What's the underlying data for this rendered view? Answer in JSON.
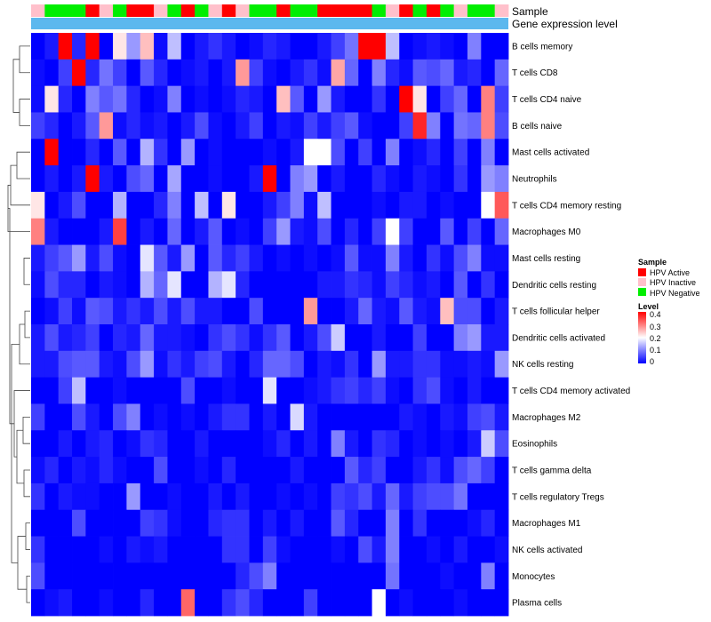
{
  "chart_data": {
    "type": "heatmap",
    "annotation_labels": [
      "Sample",
      "Gene expression level"
    ],
    "sample_categories": [
      "HPV Active",
      "HPV Inactive",
      "HPV Negative"
    ],
    "sample_colors": {
      "HPV Active": "#ff0000",
      "HPV Inactive": "#ffc0cb",
      "HPV Negative": "#00ee00"
    },
    "expression_bar_color": "#5cb8ee",
    "sample_groups": [
      "HPV Inactive",
      "HPV Negative",
      "HPV Negative",
      "HPV Negative",
      "HPV Active",
      "HPV Inactive",
      "HPV Negative",
      "HPV Active",
      "HPV Active",
      "HPV Inactive",
      "HPV Negative",
      "HPV Active",
      "HPV Negative",
      "HPV Inactive",
      "HPV Active",
      "HPV Inactive",
      "HPV Negative",
      "HPV Negative",
      "HPV Active",
      "HPV Negative",
      "HPV Negative",
      "HPV Active",
      "HPV Active",
      "HPV Active",
      "HPV Active",
      "HPV Negative",
      "HPV Inactive",
      "HPV Active",
      "HPV Negative",
      "HPV Active",
      "HPV Negative",
      "HPV Inactive",
      "HPV Negative",
      "HPV Negative",
      "HPV Inactive"
    ],
    "rows": [
      "B cells memory",
      "T cells CD8",
      "T cells CD4 naive",
      "B cells naive",
      "Mast cells activated",
      "Neutrophils",
      "T cells CD4 memory resting",
      "Macrophages M0",
      "Mast cells resting",
      "Dendritic cells resting",
      "T cells follicular helper",
      "Dendritic cells activated",
      "NK cells resting",
      "T cells CD4 memory activated",
      "Macrophages M2",
      "Eosinophils",
      "T cells gamma delta",
      "T cells regulatory  Tregs",
      "Macrophages M1",
      "NK cells activated",
      "Monocytes",
      "Plasma cells"
    ],
    "values": [
      [
        0.0,
        0.02,
        0.4,
        0.03,
        0.4,
        0.0,
        0.22,
        0.12,
        0.25,
        0.01,
        0.15,
        0.0,
        0.02,
        0.04,
        0.02,
        0.0,
        0.01,
        0.03,
        0.02,
        0.0,
        0.0,
        0.02,
        0.05,
        0.09,
        0.4,
        0.4,
        0.15,
        0.0,
        0.01,
        0.02,
        0.01,
        0.0,
        0.1,
        0.0,
        0.0
      ],
      [
        0.01,
        0.0,
        0.05,
        0.4,
        0.03,
        0.09,
        0.05,
        0.0,
        0.07,
        0.03,
        0.0,
        0.01,
        0.02,
        0.0,
        0.02,
        0.28,
        0.05,
        0.01,
        0.0,
        0.02,
        0.04,
        0.01,
        0.27,
        0.08,
        0.0,
        0.1,
        0.03,
        0.01,
        0.07,
        0.06,
        0.08,
        0.02,
        0.03,
        0.0,
        0.08
      ],
      [
        0.01,
        0.22,
        0.03,
        0.0,
        0.1,
        0.07,
        0.09,
        0.03,
        0.0,
        0.01,
        0.1,
        0.0,
        0.01,
        0.0,
        0.01,
        0.03,
        0.02,
        0.0,
        0.25,
        0.07,
        0.0,
        0.12,
        0.02,
        0.0,
        0.0,
        0.04,
        0.0,
        0.4,
        0.22,
        0.0,
        0.05,
        0.08,
        0.0,
        0.3,
        0.05
      ],
      [
        0.05,
        0.03,
        0.0,
        0.02,
        0.07,
        0.28,
        0.01,
        0.03,
        0.01,
        0.02,
        0.0,
        0.02,
        0.06,
        0.01,
        0.0,
        0.02,
        0.05,
        0.0,
        0.02,
        0.01,
        0.05,
        0.02,
        0.05,
        0.07,
        0.01,
        0.0,
        0.0,
        0.05,
        0.37,
        0.1,
        0.0,
        0.09,
        0.08,
        0.3,
        0.06
      ],
      [
        0.0,
        0.4,
        0.0,
        0.0,
        0.03,
        0.0,
        0.07,
        0.0,
        0.14,
        0.04,
        0.0,
        0.12,
        0.0,
        0.01,
        0.0,
        0.0,
        0.0,
        0.01,
        0.0,
        0.02,
        0.2,
        0.2,
        0.06,
        0.0,
        0.05,
        0.0,
        0.1,
        0.0,
        0.01,
        0.03,
        0.0,
        0.05,
        0.0,
        0.1,
        0.0
      ],
      [
        0.0,
        0.02,
        0.0,
        0.02,
        0.4,
        0.02,
        0.0,
        0.06,
        0.08,
        0.0,
        0.13,
        0.0,
        0.0,
        0.01,
        0.0,
        0.0,
        0.02,
        0.4,
        0.0,
        0.1,
        0.12,
        0.0,
        0.02,
        0.0,
        0.0,
        0.03,
        0.01,
        0.0,
        0.02,
        0.01,
        0.0,
        0.04,
        0.0,
        0.12,
        0.1
      ],
      [
        0.22,
        0.0,
        0.02,
        0.06,
        0.0,
        0.0,
        0.14,
        0.0,
        0.0,
        0.03,
        0.1,
        0.0,
        0.15,
        0.0,
        0.22,
        0.0,
        0.0,
        0.02,
        0.05,
        0.1,
        0.01,
        0.15,
        0.0,
        0.0,
        0.0,
        0.01,
        0.0,
        0.02,
        0.02,
        0.0,
        0.01,
        0.0,
        0.0,
        0.2,
        0.33
      ],
      [
        0.3,
        0.02,
        0.0,
        0.0,
        0.0,
        0.02,
        0.35,
        0.0,
        0.02,
        0.0,
        0.08,
        0.0,
        0.02,
        0.07,
        0.0,
        0.01,
        0.0,
        0.05,
        0.12,
        0.02,
        0.01,
        0.06,
        0.0,
        0.03,
        0.0,
        0.05,
        0.2,
        0.05,
        0.0,
        0.0,
        0.07,
        0.0,
        0.05,
        0.0,
        0.08
      ],
      [
        0.02,
        0.05,
        0.07,
        0.12,
        0.02,
        0.06,
        0.01,
        0.0,
        0.18,
        0.07,
        0.02,
        0.12,
        0.0,
        0.07,
        0.03,
        0.05,
        0.02,
        0.0,
        0.01,
        0.0,
        0.01,
        0.0,
        0.01,
        0.07,
        0.01,
        0.01,
        0.1,
        0.02,
        0.0,
        0.04,
        0.01,
        0.06,
        0.1,
        0.01,
        0.01
      ],
      [
        0.01,
        0.06,
        0.03,
        0.03,
        0.0,
        0.02,
        0.01,
        0.0,
        0.14,
        0.08,
        0.18,
        0.0,
        0.0,
        0.14,
        0.18,
        0.03,
        0.0,
        0.0,
        0.0,
        0.0,
        0.0,
        0.02,
        0.02,
        0.04,
        0.03,
        0.01,
        0.05,
        0.03,
        0.01,
        0.02,
        0.0,
        0.07,
        0.0,
        0.04,
        0.0
      ],
      [
        0.0,
        0.01,
        0.05,
        0.01,
        0.07,
        0.06,
        0.02,
        0.04,
        0.02,
        0.06,
        0.02,
        0.06,
        0.02,
        0.02,
        0.0,
        0.0,
        0.06,
        0.0,
        0.0,
        0.0,
        0.28,
        0.0,
        0.0,
        0.02,
        0.08,
        0.02,
        0.01,
        0.07,
        0.02,
        0.01,
        0.25,
        0.06,
        0.06,
        0.0,
        0.02
      ],
      [
        0.02,
        0.06,
        0.02,
        0.03,
        0.05,
        0.0,
        0.03,
        0.02,
        0.08,
        0.02,
        0.02,
        0.01,
        0.0,
        0.04,
        0.06,
        0.04,
        0.01,
        0.04,
        0.07,
        0.0,
        0.02,
        0.06,
        0.16,
        0.0,
        0.0,
        0.02,
        0.0,
        0.0,
        0.05,
        0.0,
        0.0,
        0.1,
        0.12,
        0.02,
        0.02
      ],
      [
        0.02,
        0.02,
        0.06,
        0.07,
        0.07,
        0.02,
        0.01,
        0.06,
        0.12,
        0.01,
        0.04,
        0.02,
        0.05,
        0.06,
        0.02,
        0.0,
        0.03,
        0.08,
        0.08,
        0.06,
        0.0,
        0.02,
        0.01,
        0.04,
        0.0,
        0.12,
        0.02,
        0.02,
        0.04,
        0.04,
        0.01,
        0.01,
        0.02,
        0.01,
        0.12
      ],
      [
        0.0,
        0.0,
        0.05,
        0.15,
        0.0,
        0.0,
        0.01,
        0.0,
        0.0,
        0.0,
        0.0,
        0.06,
        0.0,
        0.0,
        0.01,
        0.0,
        0.0,
        0.18,
        0.0,
        0.0,
        0.01,
        0.02,
        0.04,
        0.05,
        0.03,
        0.05,
        0.01,
        0.0,
        0.04,
        0.06,
        0.01,
        0.0,
        0.02,
        0.0,
        0.0
      ],
      [
        0.05,
        0.0,
        0.0,
        0.06,
        0.02,
        0.0,
        0.06,
        0.1,
        0.0,
        0.01,
        0.0,
        0.01,
        0.0,
        0.02,
        0.04,
        0.04,
        0.0,
        0.02,
        0.0,
        0.17,
        0.02,
        0.0,
        0.0,
        0.0,
        0.0,
        0.0,
        0.0,
        0.02,
        0.01,
        0.0,
        0.02,
        0.01,
        0.05,
        0.06,
        0.02
      ],
      [
        0.0,
        0.0,
        0.02,
        0.0,
        0.02,
        0.03,
        0.0,
        0.01,
        0.04,
        0.03,
        0.0,
        0.0,
        0.02,
        0.0,
        0.0,
        0.0,
        0.0,
        0.01,
        0.03,
        0.0,
        0.02,
        0.0,
        0.1,
        0.02,
        0.0,
        0.04,
        0.03,
        0.0,
        0.01,
        0.0,
        0.01,
        0.0,
        0.02,
        0.16,
        0.06
      ],
      [
        0.01,
        0.03,
        0.0,
        0.02,
        0.01,
        0.03,
        0.01,
        0.0,
        0.0,
        0.06,
        0.0,
        0.0,
        0.01,
        0.0,
        0.03,
        0.0,
        0.0,
        0.0,
        0.0,
        0.02,
        0.0,
        0.0,
        0.0,
        0.07,
        0.03,
        0.05,
        0.0,
        0.0,
        0.02,
        0.04,
        0.01,
        0.06,
        0.08,
        0.05,
        0.0
      ],
      [
        0.04,
        0.0,
        0.02,
        0.01,
        0.01,
        0.0,
        0.0,
        0.12,
        0.0,
        0.0,
        0.01,
        0.0,
        0.0,
        0.02,
        0.0,
        0.02,
        0.0,
        0.0,
        0.01,
        0.0,
        0.01,
        0.0,
        0.05,
        0.04,
        0.06,
        0.02,
        0.08,
        0.02,
        0.05,
        0.06,
        0.06,
        0.09,
        0.0,
        0.0,
        0.0
      ],
      [
        0.0,
        0.0,
        0.0,
        0.06,
        0.0,
        0.0,
        0.0,
        0.0,
        0.05,
        0.04,
        0.01,
        0.0,
        0.0,
        0.03,
        0.04,
        0.04,
        0.0,
        0.02,
        0.0,
        0.02,
        0.0,
        0.0,
        0.07,
        0.03,
        0.0,
        0.0,
        0.1,
        0.0,
        0.04,
        0.0,
        0.0,
        0.0,
        0.01,
        0.03,
        0.0
      ],
      [
        0.04,
        0.0,
        0.0,
        0.0,
        0.0,
        0.01,
        0.0,
        0.02,
        0.01,
        0.02,
        0.0,
        0.0,
        0.0,
        0.0,
        0.04,
        0.04,
        0.0,
        0.05,
        0.01,
        0.0,
        0.0,
        0.0,
        0.01,
        0.0,
        0.06,
        0.02,
        0.1,
        0.0,
        0.0,
        0.01,
        0.0,
        0.02,
        0.0,
        0.0,
        0.01
      ],
      [
        0.06,
        0.0,
        0.0,
        0.0,
        0.0,
        0.0,
        0.0,
        0.0,
        0.0,
        0.0,
        0.0,
        0.0,
        0.0,
        0.0,
        0.0,
        0.03,
        0.06,
        0.1,
        0.0,
        0.0,
        0.0,
        0.0,
        0.0,
        0.0,
        0.0,
        0.0,
        0.09,
        0.0,
        0.0,
        0.0,
        0.01,
        0.0,
        0.0,
        0.1,
        0.0
      ],
      [
        0.0,
        0.01,
        0.02,
        0.0,
        0.0,
        0.01,
        0.0,
        0.0,
        0.03,
        0.0,
        0.0,
        0.32,
        0.0,
        0.0,
        0.04,
        0.06,
        0.03,
        0.0,
        0.0,
        0.0,
        0.05,
        0.0,
        0.0,
        0.0,
        0.0,
        0.2,
        0.0,
        0.01,
        0.0,
        0.0,
        0.0,
        0.01,
        0.0,
        0.0,
        0.0
      ]
    ],
    "color_scale": {
      "min": 0,
      "max": 0.4,
      "stops": [
        "#0000ff",
        "#ffffff",
        "#ff0000"
      ]
    },
    "legend": {
      "sample_title": "Sample",
      "level_title": "Level",
      "level_ticks": [
        "0.4",
        "0.3",
        "0.2",
        "0.1",
        "0"
      ],
      "position": "right"
    }
  }
}
